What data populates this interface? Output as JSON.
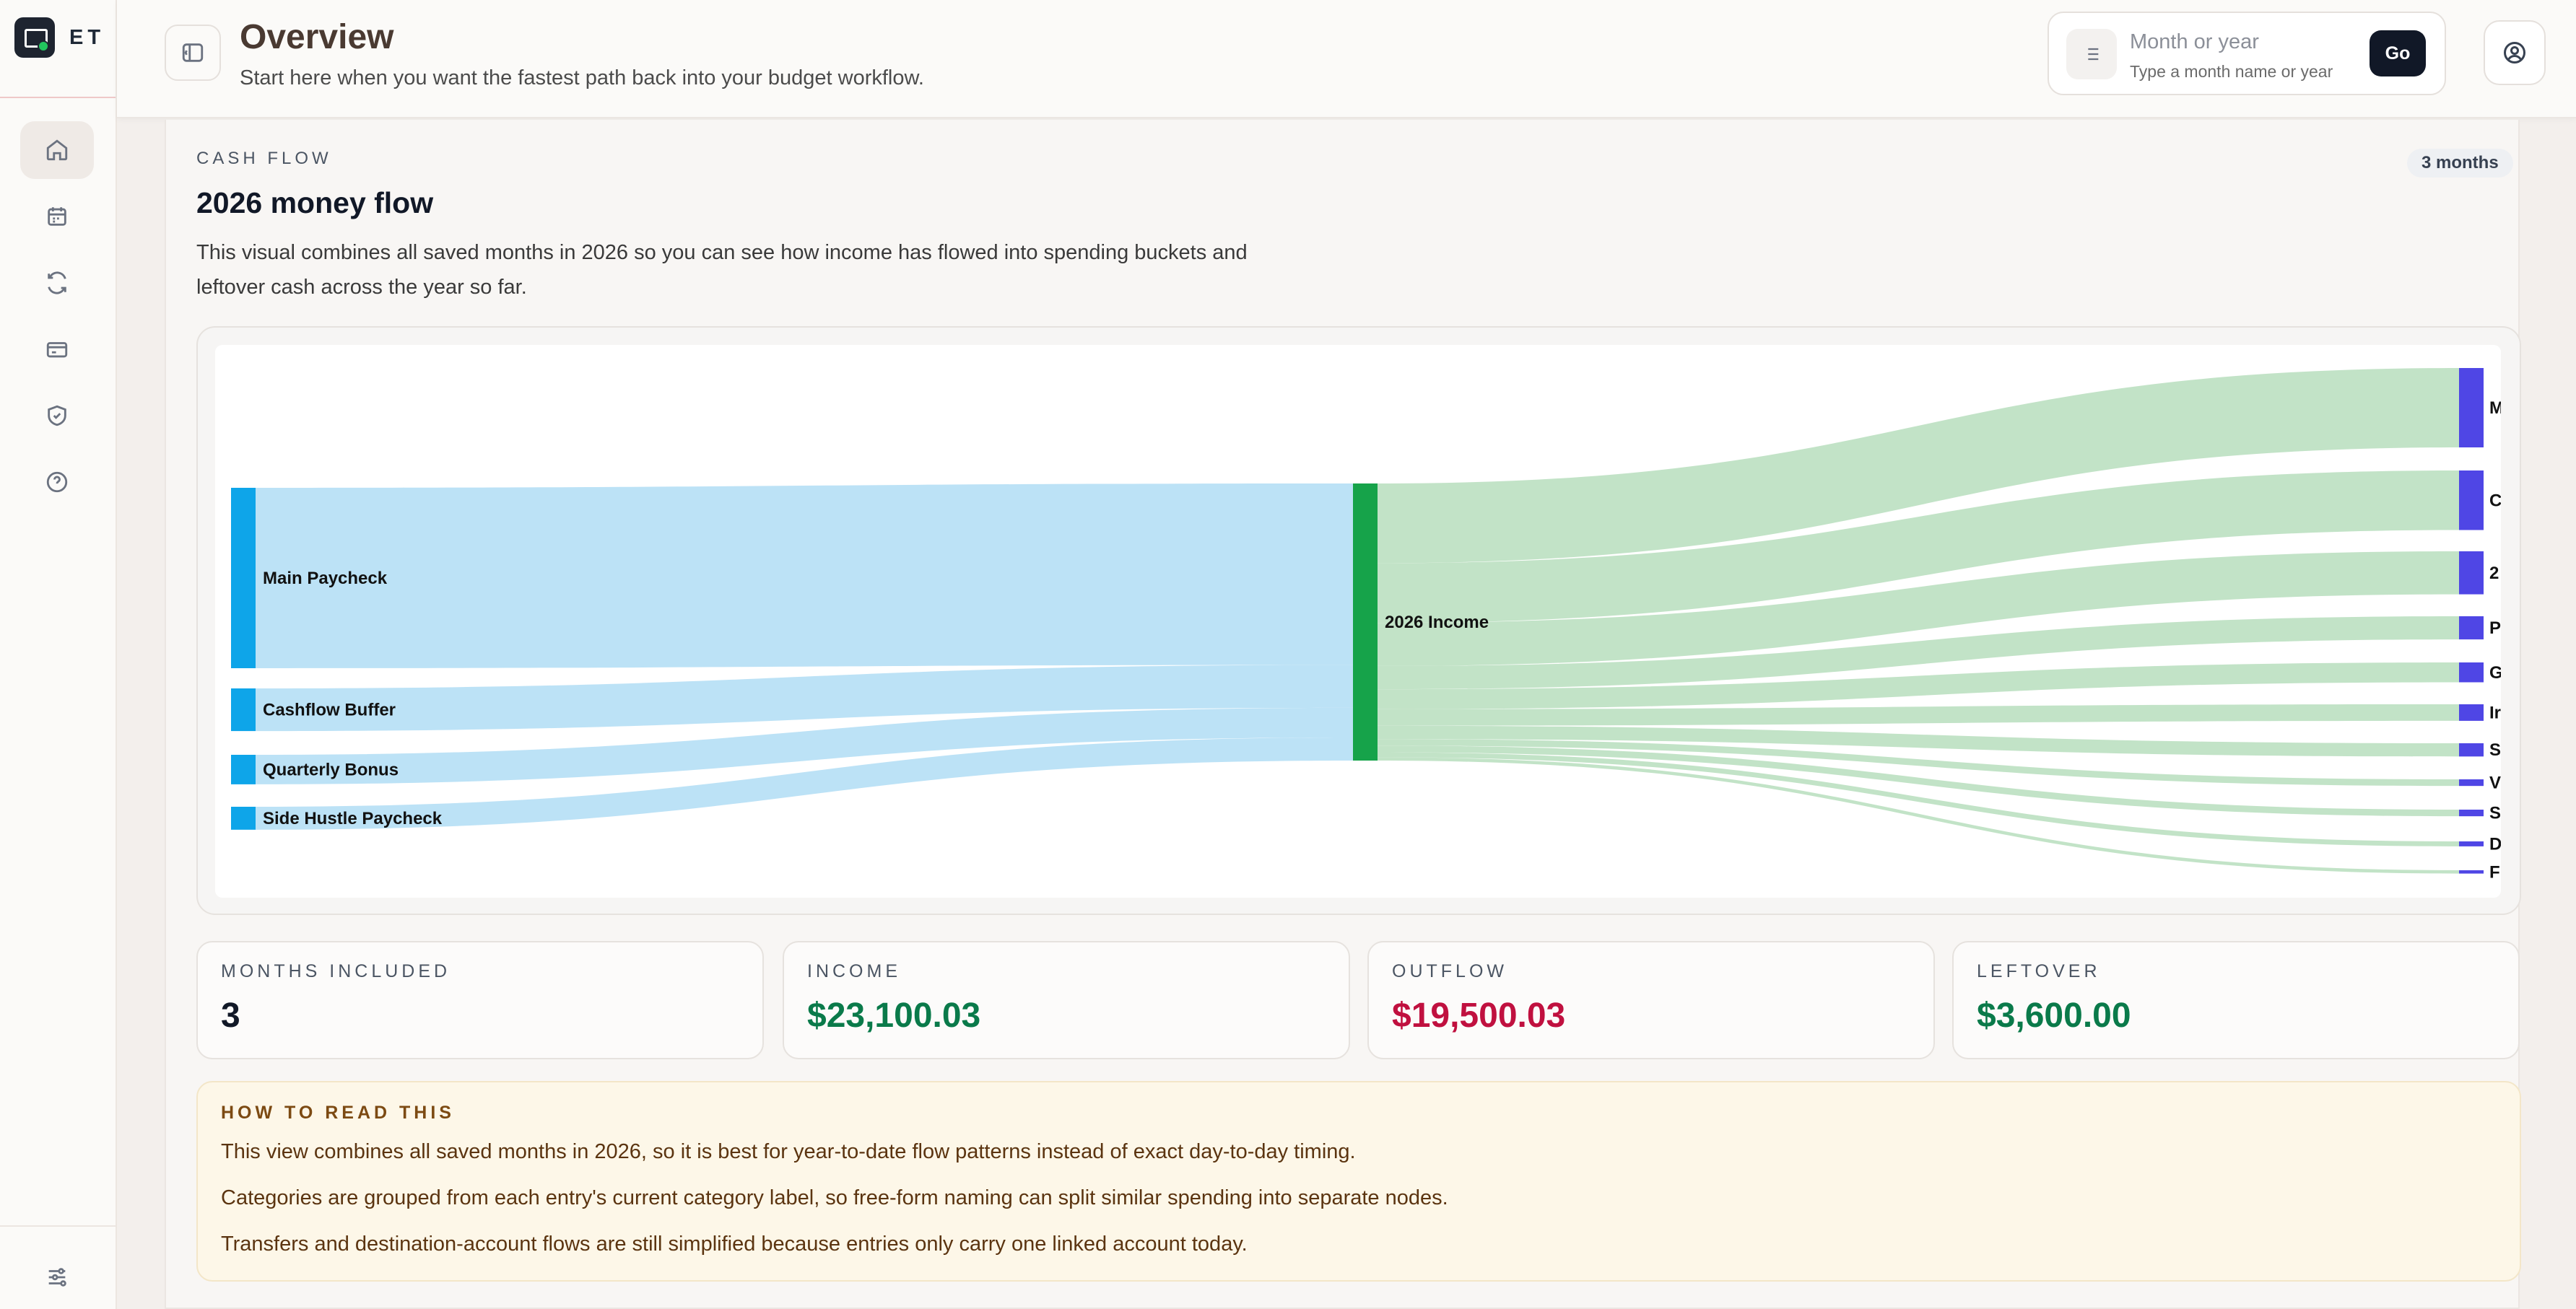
{
  "app": {
    "brand": "ET"
  },
  "sidebar": {
    "items": [
      {
        "icon": "home-icon",
        "active": true
      },
      {
        "icon": "calendar-icon"
      },
      {
        "icon": "refresh-icon"
      },
      {
        "icon": "credit-card-icon"
      },
      {
        "icon": "shield-check-icon"
      },
      {
        "icon": "help-circle-icon"
      }
    ],
    "bottom_icon": "sliders-icon"
  },
  "header": {
    "title": "Overview",
    "subtitle": "Start here when you want the fastest path back into your budget workflow.",
    "search": {
      "placeholder": "Month or year",
      "value": "",
      "hint": "Type a month name or year",
      "go_label": "Go"
    }
  },
  "cash_flow": {
    "eyebrow": "CASH FLOW",
    "title": "2026 money flow",
    "badge": "3 months",
    "description": "This visual combines all saved months in 2026 so you can see how income has flowed into spending buckets and leftover cash across the year so far."
  },
  "chart_data": {
    "type": "sankey",
    "sources": [
      {
        "name": "Main Paycheck",
        "weight": 110
      },
      {
        "name": "Cashflow Buffer",
        "weight": 26
      },
      {
        "name": "Quarterly Bonus",
        "weight": 18
      },
      {
        "name": "Side Hustle Paycheck",
        "weight": 14
      }
    ],
    "hub": "2026 Income",
    "targets": [
      {
        "name": "M",
        "weight": 48
      },
      {
        "name": "C",
        "weight": 36
      },
      {
        "name": "2",
        "weight": 26
      },
      {
        "name": "P",
        "weight": 14
      },
      {
        "name": "G",
        "weight": 12
      },
      {
        "name": "Ir",
        "weight": 10
      },
      {
        "name": "S",
        "weight": 8
      },
      {
        "name": "V",
        "weight": 4
      },
      {
        "name": "S",
        "weight": 4
      },
      {
        "name": "D",
        "weight": 3
      },
      {
        "name": "F",
        "weight": 2
      }
    ],
    "colors": {
      "source_node": "#0ea5e9",
      "source_link": "#b8e0f6",
      "hub_node": "#16a34a",
      "target_link": "#bfe1c4",
      "target_node": "#4f46e5"
    }
  },
  "stats": [
    {
      "label": "MONTHS INCLUDED",
      "value": "3",
      "color": "#111827"
    },
    {
      "label": "INCOME",
      "value": "$23,100.03",
      "color": "#0a7a4a"
    },
    {
      "label": "OUTFLOW",
      "value": "$19,500.03",
      "color": "#c0103f"
    },
    {
      "label": "LEFTOVER",
      "value": "$3,600.00",
      "color": "#0a7a4a"
    }
  ],
  "notes": {
    "title": "HOW TO READ THIS",
    "lines": [
      "This view combines all saved months in 2026, so it is best for year-to-date flow patterns instead of exact day-to-day timing.",
      "Categories are grouped from each entry's current category label, so free-form naming can split similar spending into separate nodes.",
      "Transfers and destination-account flows are still simplified because entries only carry one linked account today."
    ]
  }
}
